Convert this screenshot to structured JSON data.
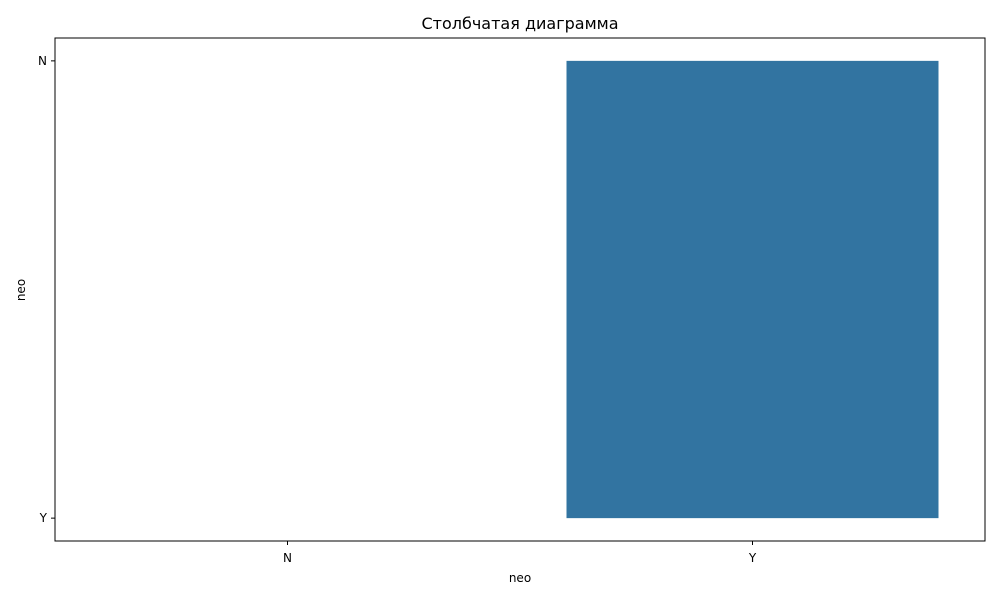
{
  "chart_data": {
    "type": "bar",
    "title": "Столбчатая диаграмма",
    "xlabel": "neo",
    "ylabel": "neo",
    "categories": [
      "N",
      "Y"
    ],
    "y_categories": [
      "Y",
      "N"
    ],
    "series": [
      {
        "values": [
          null,
          "N"
        ],
        "color": "#3274a1"
      }
    ],
    "grid": false,
    "legend": false
  }
}
